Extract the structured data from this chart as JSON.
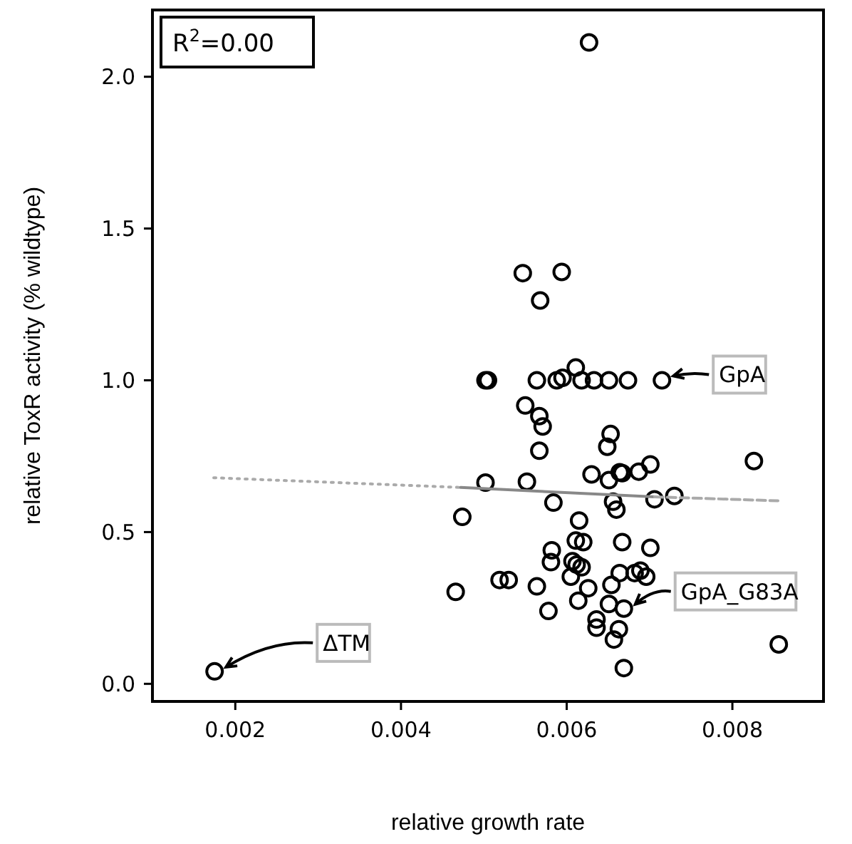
{
  "chart_data": {
    "type": "scatter",
    "xlabel": "relative growth rate",
    "ylabel": "relative ToxR activity (% wildtype)",
    "xlim": [
      0.001,
      0.0091
    ],
    "ylim": [
      -0.058,
      2.22
    ],
    "xticks": [
      0.002,
      0.004,
      0.006,
      0.008
    ],
    "yticks": [
      {
        "value": 0,
        "label": "0.0"
      },
      0.5,
      {
        "value": 1,
        "label": "1.0"
      },
      1.5,
      {
        "value": 2,
        "label": "2.0"
      }
    ],
    "grid": false,
    "marker": "circle",
    "annotations": [
      "R$^{2}$=0.00",
      {
        "text": "GpA",
        "x": 0.00715,
        "y": 1.0
      },
      {
        "text": "GpA_G83A",
        "x": 0.00669,
        "y": 0.248
      },
      {
        "text": "ΔTM",
        "x": 0.00175,
        "y": 0.041
      }
    ],
    "series": [
      {
        "color": "#000000",
        "x": [
          0.00627,
          0.00547,
          0.00594,
          0.00568,
          0.00502,
          0.00505,
          0.00564,
          0.00588,
          0.00595,
          0.00611,
          0.00618,
          0.00633,
          0.00651,
          0.00674,
          0.00715,
          0.0055,
          0.00567,
          0.00571,
          0.00653,
          0.00649,
          0.00567,
          0.00826,
          0.00701,
          0.0063,
          0.00651,
          0.00664,
          0.00667,
          0.00687,
          0.00502,
          0.00552,
          0.00584,
          0.00656,
          0.0066,
          0.00706,
          0.0073,
          0.00474,
          0.00615,
          0.00611,
          0.0062,
          0.00667,
          0.00701,
          0.00582,
          0.00581,
          0.00607,
          0.00612,
          0.00618,
          0.00605,
          0.00519,
          0.0053,
          0.00664,
          0.00682,
          0.00689,
          0.00696,
          0.00564,
          0.00626,
          0.00654,
          0.00466,
          0.00614,
          0.00651,
          0.00669,
          0.00578,
          0.00636,
          0.00636,
          0.00663,
          0.00657,
          0.00856,
          0.00669,
          0.00175
        ],
        "values": [
          2.113,
          1.353,
          1.357,
          1.263,
          1.0,
          1.0,
          1.0,
          1.0,
          1.008,
          1.042,
          1.0,
          1.0,
          1.0,
          1.0,
          1.0,
          0.917,
          0.882,
          0.848,
          0.823,
          0.781,
          0.768,
          0.734,
          0.723,
          0.69,
          0.671,
          0.697,
          0.694,
          0.699,
          0.663,
          0.666,
          0.597,
          0.6,
          0.574,
          0.608,
          0.619,
          0.55,
          0.538,
          0.472,
          0.467,
          0.467,
          0.448,
          0.44,
          0.401,
          0.404,
          0.393,
          0.384,
          0.353,
          0.342,
          0.342,
          0.365,
          0.365,
          0.373,
          0.353,
          0.321,
          0.315,
          0.326,
          0.303,
          0.274,
          0.263,
          0.248,
          0.24,
          0.212,
          0.185,
          0.18,
          0.146,
          0.13,
          0.052,
          0.041
        ]
      },
      {
        "type": "line",
        "color": "#aaaaaa",
        "line_style": "dotted",
        "marker": "none",
        "x": [
          0.00174,
          0.00472
        ],
        "values": [
          0.679,
          0.647
        ]
      },
      {
        "type": "line",
        "color": "#888888",
        "line_style": "solid",
        "marker": "none",
        "x": [
          0.00472,
          0.00706
        ],
        "values": [
          0.647,
          0.616
        ]
      },
      {
        "type": "line",
        "color": "#aaaaaa",
        "line_style": "dashed",
        "marker": "none",
        "x": [
          0.00706,
          0.00855
        ],
        "values": [
          0.616,
          0.603
        ]
      }
    ]
  }
}
